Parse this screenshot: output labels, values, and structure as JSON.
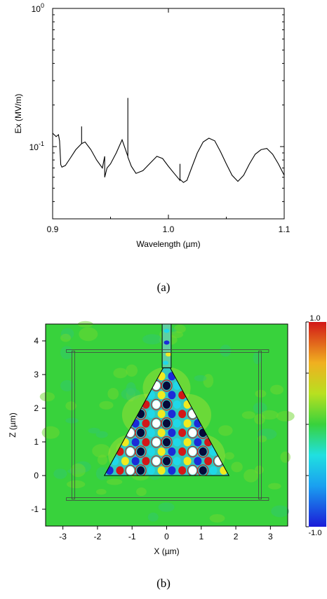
{
  "chart_data": [
    {
      "type": "line",
      "xlabel": "Wavelength (µm)",
      "ylabel": "Ex (MV/m)",
      "xlim": [
        0.9,
        1.1
      ],
      "ylim": [
        0.03,
        1.0
      ],
      "yscale": "log",
      "xticks": [
        0.9,
        1.0,
        1.1
      ],
      "xtick_labels": [
        "0.9",
        "1.0",
        "1.1"
      ],
      "yticks": [
        0.1,
        1
      ],
      "ytick_labels": [
        {
          "base": "10",
          "exp": "-1"
        },
        {
          "base": "10",
          "exp": "0"
        }
      ],
      "grid": false,
      "series": [
        {
          "x": [
            0.9,
            0.903,
            0.905,
            0.906,
            0.907,
            0.908,
            0.911,
            0.915,
            0.92,
            0.925,
            0.925,
            0.925,
            0.928,
            0.933,
            0.938,
            0.943,
            0.945,
            0.945,
            0.947,
            0.95,
            0.955,
            0.96,
            0.965,
            0.965,
            0.965,
            0.968,
            0.972,
            0.978,
            0.985,
            0.99,
            0.995,
            1.0,
            1.005,
            1.01,
            1.01,
            1.01,
            1.013,
            1.016,
            1.02,
            1.025,
            1.03,
            1.035,
            1.04,
            1.045,
            1.05,
            1.055,
            1.06,
            1.065,
            1.07,
            1.075,
            1.08,
            1.085,
            1.09,
            1.095,
            1.1
          ],
          "y": [
            0.125,
            0.118,
            0.122,
            0.11,
            0.074,
            0.071,
            0.073,
            0.082,
            0.095,
            0.105,
            0.14,
            0.105,
            0.108,
            0.095,
            0.08,
            0.07,
            0.085,
            0.06,
            0.07,
            0.075,
            0.09,
            0.112,
            0.085,
            0.225,
            0.084,
            0.072,
            0.064,
            0.067,
            0.077,
            0.085,
            0.082,
            0.072,
            0.064,
            0.057,
            0.075,
            0.058,
            0.055,
            0.057,
            0.07,
            0.09,
            0.108,
            0.115,
            0.11,
            0.092,
            0.075,
            0.062,
            0.056,
            0.062,
            0.075,
            0.088,
            0.095,
            0.097,
            0.088,
            0.075,
            0.062
          ]
        }
      ]
    },
    {
      "type": "heatmap",
      "xlabel": "X (µm)",
      "ylabel": "Z (µm)",
      "xlim": [
        -3.5,
        3.5
      ],
      "ylim": [
        -1.5,
        4.5
      ],
      "xticks": [
        -3,
        -2,
        -1,
        0,
        1,
        2,
        3
      ],
      "yticks": [
        -1,
        0,
        1,
        2,
        3,
        4
      ],
      "colorbar": {
        "min": -1.0,
        "max": 1.0,
        "min_label": "-1.0",
        "max_label": "1.0"
      },
      "structure": {
        "triangle": [
          [
            -1.8,
            0
          ],
          [
            1.8,
            0
          ],
          [
            0.1,
            3.2
          ],
          [
            -0.1,
            3.2
          ]
        ],
        "waveguide_x": [
          -0.13,
          0.13
        ],
        "frame_x": [
          -2.7,
          2.7
        ],
        "frame_z": [
          -0.7,
          3.7
        ]
      },
      "colors": {
        "background": "#38d23c",
        "red": "#d21818",
        "blue": "#1b2bd8",
        "navy": "#060a3a",
        "cyan": "#20d8e8",
        "yellow": "#f0ea20"
      }
    }
  ],
  "captions": {
    "a": "(a)",
    "b": "(b)"
  }
}
